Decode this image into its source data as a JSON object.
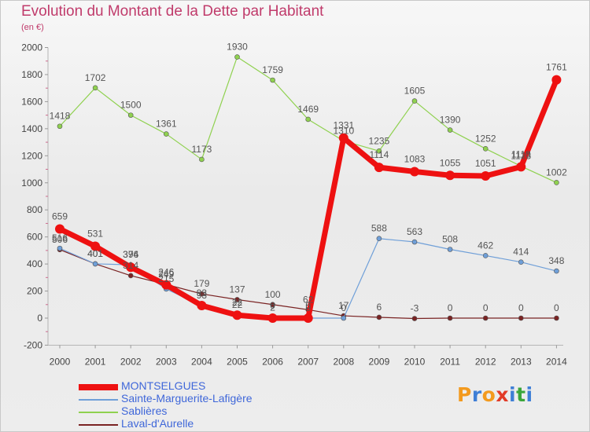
{
  "header": {
    "title": "Evolution du Montant de la Dette par Habitant",
    "subtitle": "(en €)"
  },
  "logo": {
    "letters": [
      "P",
      "r",
      "o",
      "x",
      "i",
      "t",
      "i"
    ],
    "colors": [
      "#f39a1e",
      "#3f7fd6",
      "#f39a1e",
      "#e23b27",
      "#3f7fd6",
      "#3ba63b",
      "#3f7fd6"
    ]
  },
  "chart_data": {
    "type": "line",
    "title": "Evolution du Montant de la Dette par Habitant",
    "ylabel": "(en €)",
    "x": [
      "2000",
      "2001",
      "2002",
      "2003",
      "2004",
      "2005",
      "2006",
      "2007",
      "2008",
      "2009",
      "2010",
      "2011",
      "2012",
      "2013",
      "2014"
    ],
    "ylim": [
      -200,
      2000
    ],
    "yticks": [
      -200,
      0,
      200,
      400,
      600,
      800,
      1000,
      1200,
      1400,
      1600,
      1800,
      2000
    ],
    "grid": false,
    "legend": "bottom-left",
    "series": [
      {
        "name": "Laval-d'Aurelle",
        "color": "#7a2323",
        "values": [
          506,
          401,
          314,
          249,
          179,
          137,
          100,
          62,
          17,
          6,
          -3,
          0,
          0,
          0,
          0
        ]
      },
      {
        "name": "Sablières",
        "color": "#8fd14f",
        "values": [
          1418,
          1702,
          1500,
          1361,
          1173,
          1930,
          1759,
          1469,
          1310,
          1235,
          1605,
          1390,
          1252,
          1123,
          1002
        ]
      },
      {
        "name": "Sainte-Marguerite-Lafigère",
        "color": "#6f9fd8",
        "values": [
          516,
          401,
          394,
          215,
          93,
          22,
          2,
          0,
          0,
          588,
          563,
          508,
          462,
          414,
          348
        ]
      },
      {
        "name": "MONTSELGUES",
        "color": "#ee1111",
        "values": [
          659,
          531,
          376,
          246,
          93,
          22,
          0,
          0,
          1331,
          1114,
          1083,
          1055,
          1051,
          1118,
          1761
        ]
      }
    ],
    "legend_order": [
      "MONTSELGUES",
      "Sainte-Marguerite-Lafigère",
      "Sablières",
      "Laval-d'Aurelle"
    ]
  }
}
